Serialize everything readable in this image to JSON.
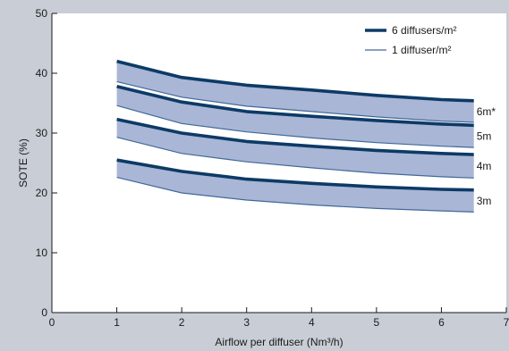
{
  "chart_data": {
    "type": "line",
    "title": "",
    "xlabel": "Airflow per diffuser (Nm³/h)",
    "ylabel": "SOTE (%)",
    "xlim": [
      0,
      7
    ],
    "ylim": [
      0,
      50
    ],
    "xticks": [
      0,
      1,
      2,
      3,
      4,
      5,
      6,
      7
    ],
    "yticks": [
      0,
      10,
      20,
      30,
      40,
      50
    ],
    "grid": false,
    "legend_position": "top-right",
    "legend": [
      {
        "label": "6 diffusers/m²",
        "style": "thick"
      },
      {
        "label": "1 diffuser/m²",
        "style": "thin"
      }
    ],
    "x": [
      1,
      2,
      3,
      4,
      5,
      6,
      6.5
    ],
    "bands": [
      {
        "label": "6m*",
        "upper": {
          "name": "6 diffusers/m²",
          "values": [
            42.0,
            39.3,
            38.0,
            37.2,
            36.3,
            35.6,
            35.4
          ]
        },
        "lower": {
          "name": "1 diffuser/m²",
          "values": [
            38.6,
            36.0,
            34.5,
            33.6,
            32.7,
            32.0,
            31.8
          ]
        }
      },
      {
        "label": "5m",
        "upper": {
          "name": "6 diffusers/m²",
          "values": [
            37.8,
            35.2,
            33.6,
            32.8,
            32.1,
            31.5,
            31.3
          ]
        },
        "lower": {
          "name": "1 diffuser/m²",
          "values": [
            34.6,
            31.6,
            30.2,
            29.2,
            28.4,
            27.8,
            27.6
          ]
        }
      },
      {
        "label": "4m",
        "upper": {
          "name": "6 diffusers/m²",
          "values": [
            32.3,
            30.0,
            28.6,
            27.8,
            27.1,
            26.6,
            26.4
          ]
        },
        "lower": {
          "name": "1 diffuser/m²",
          "values": [
            29.3,
            26.6,
            25.2,
            24.2,
            23.3,
            22.7,
            22.5
          ]
        }
      },
      {
        "label": "3m",
        "upper": {
          "name": "6 diffusers/m²",
          "values": [
            25.5,
            23.6,
            22.3,
            21.6,
            21.0,
            20.6,
            20.5
          ]
        },
        "lower": {
          "name": "1 diffuser/m²",
          "values": [
            22.6,
            20.0,
            18.8,
            18.0,
            17.4,
            17.0,
            16.8
          ]
        }
      }
    ],
    "colors": {
      "background": "#c9ced6",
      "plot_area": "#ffffff",
      "band_fill": "#a9b6d6",
      "thick_line": "#0d3a66",
      "thin_line": "#41699a",
      "axis": "#1a1a1a"
    }
  }
}
